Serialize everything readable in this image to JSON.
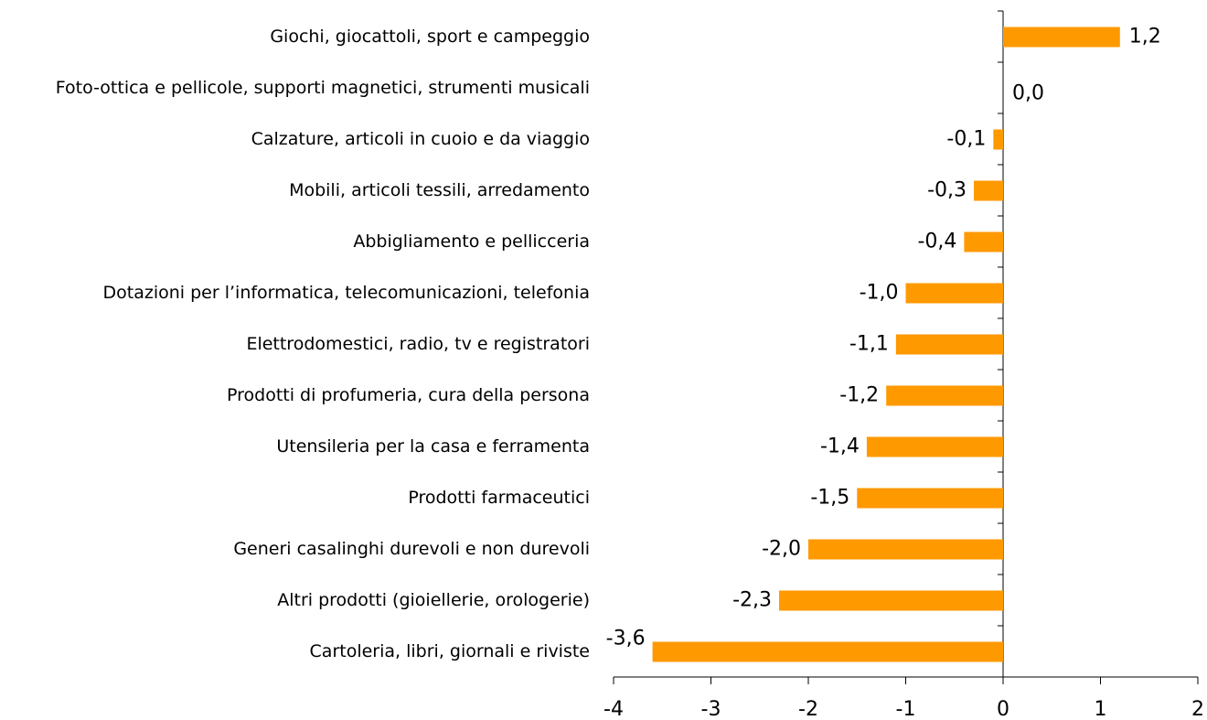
{
  "chart_data": {
    "type": "bar",
    "orientation": "horizontal",
    "categories": [
      "Giochi, giocattoli, sport e campeggio",
      "Foto-ottica e pellicole, supporti magnetici, strumenti musicali",
      "Calzature, articoli in cuoio e da viaggio",
      "Mobili, articoli tessili, arredamento",
      "Abbigliamento e pellicceria",
      "Dotazioni per l’informatica, telecomunicazioni, telefonia",
      "Elettrodomestici, radio, tv e registratori",
      "Prodotti di profumeria, cura della persona",
      "Utensileria per la casa e ferramenta",
      "Prodotti farmaceutici",
      "Generi casalinghi durevoli e non durevoli",
      "Altri prodotti (gioiellerie, orologerie)",
      "Cartoleria, libri, giornali e riviste"
    ],
    "values": [
      1.2,
      0.0,
      -0.1,
      -0.3,
      -0.4,
      -1.0,
      -1.1,
      -1.2,
      -1.4,
      -1.5,
      -2.0,
      -2.3,
      -3.6
    ],
    "value_labels": [
      "1,2",
      "0,0",
      "-0,1",
      "-0,3",
      "-0,4",
      "-1,0",
      "-1,1",
      "-1,2",
      "-1,4",
      "-1,5",
      "-2,0",
      "-2,3",
      "-3,6"
    ],
    "color": "#ff9900",
    "xlim": [
      -4,
      2
    ],
    "xticks": [
      -4,
      -3,
      -2,
      -1,
      0,
      1,
      2
    ]
  }
}
